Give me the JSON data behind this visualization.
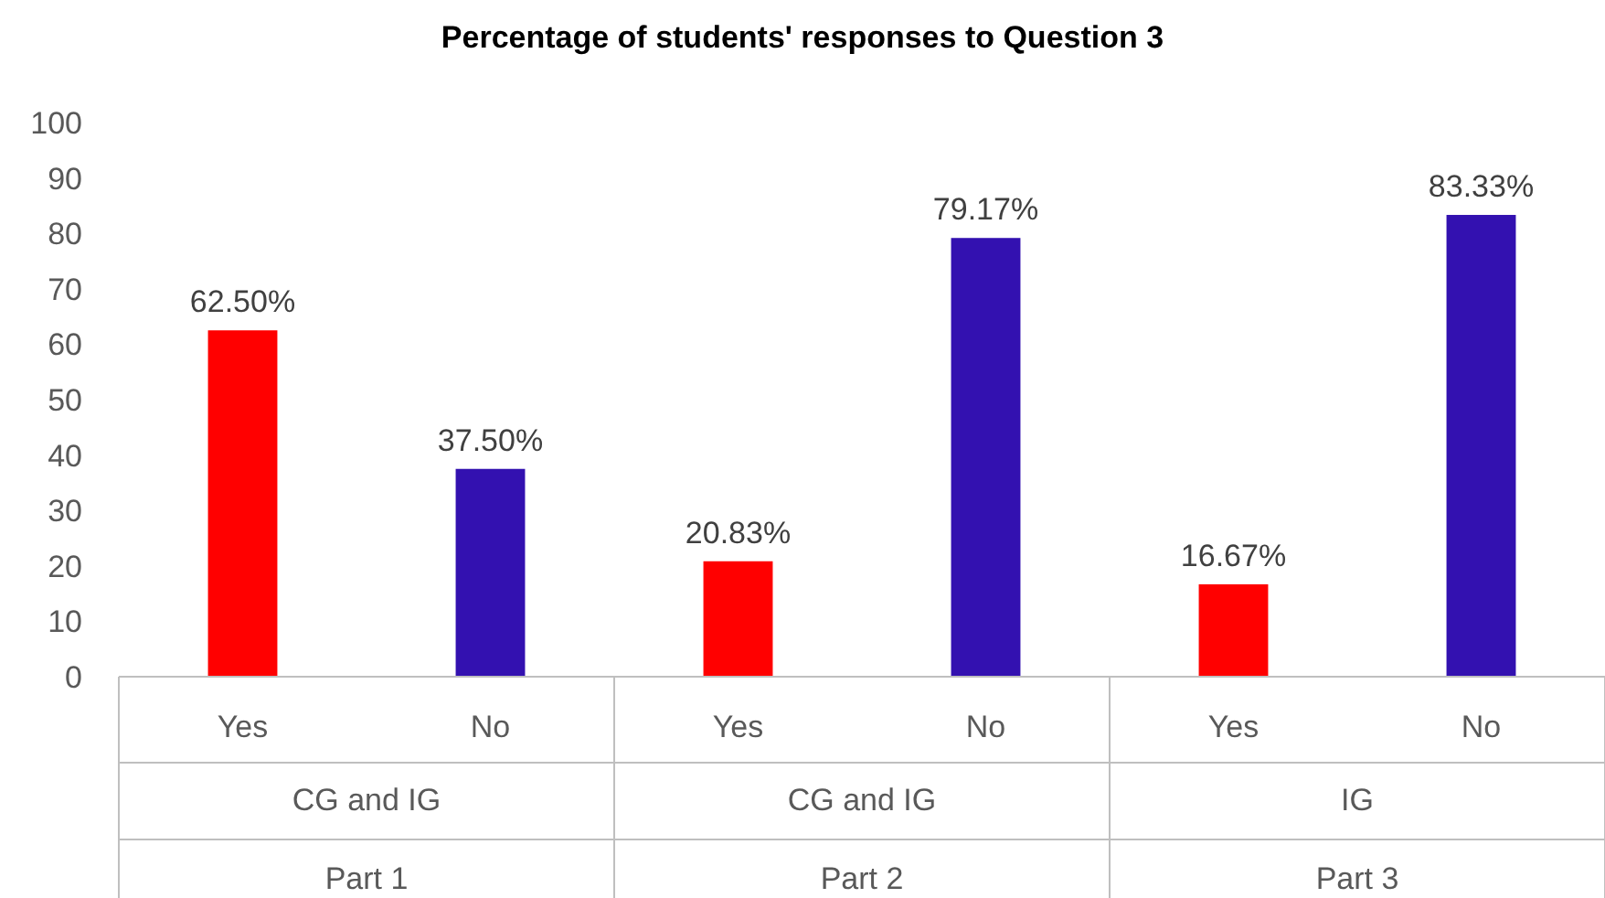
{
  "chart_data": {
    "type": "bar",
    "title": "Percentage of students' responses to Question 3",
    "categories": [
      "Yes",
      "No",
      "Yes",
      "No",
      "Yes",
      "No"
    ],
    "values": [
      62.5,
      37.5,
      20.83,
      79.17,
      16.67,
      83.33
    ],
    "colors": [
      "#ff0000",
      "#3311b0",
      "#ff0000",
      "#3311b0",
      "#ff0000",
      "#3311b0"
    ],
    "value_labels": [
      "62.50%",
      "37.50%",
      "20.83%",
      "79.17%",
      "16.67%",
      "83.33%"
    ],
    "ylim": [
      0,
      100
    ],
    "yticks": [
      0,
      10,
      20,
      30,
      40,
      50,
      60,
      70,
      80,
      90,
      100
    ],
    "grid": false,
    "annotations": [
      "CG and IG",
      "CG and IG",
      "IG",
      "Part 1",
      "Part 2",
      "Part 3"
    ]
  }
}
